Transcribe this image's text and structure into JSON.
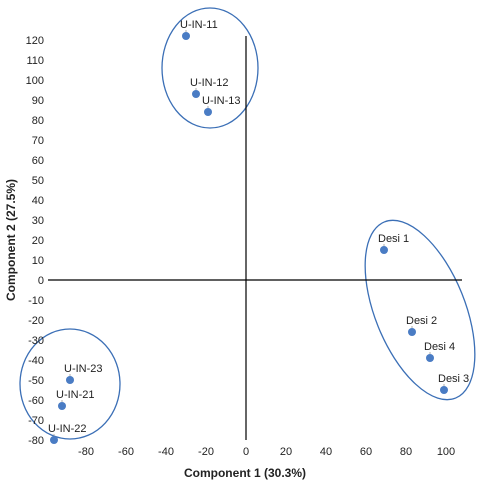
{
  "chart_data": {
    "type": "scatter",
    "xlabel": "Component 1 (30.3%)",
    "ylabel": "Component 2 (27.5%)",
    "xlim": [
      -100,
      110
    ],
    "ylim": [
      -80,
      125
    ],
    "x_ticks": [
      -80,
      -60,
      -40,
      -20,
      0,
      20,
      40,
      60,
      80,
      100
    ],
    "y_ticks": [
      120,
      110,
      100,
      90,
      80,
      70,
      60,
      50,
      40,
      30,
      20,
      10,
      0,
      -10,
      -20,
      -30,
      -40,
      -50,
      -60,
      -70,
      -80
    ],
    "grid": false,
    "point_color": "#4a7cc4",
    "ellipse_color": "#3b6fb6",
    "points": [
      {
        "label": "U-IN-11",
        "x": -30,
        "y": 122
      },
      {
        "label": "U-IN-12",
        "x": -25,
        "y": 93
      },
      {
        "label": "U-IN-13",
        "x": -19,
        "y": 84
      },
      {
        "label": "Desi 1",
        "x": 69,
        "y": 15
      },
      {
        "label": "Desi 2",
        "x": 83,
        "y": -26
      },
      {
        "label": "Desi 4",
        "x": 92,
        "y": -39
      },
      {
        "label": "Desi 3",
        "x": 99,
        "y": -55
      },
      {
        "label": "U-IN-23",
        "x": -88,
        "y": -50
      },
      {
        "label": "U-IN-21",
        "x": -92,
        "y": -63
      },
      {
        "label": "U-IN-22",
        "x": -96,
        "y": -80
      }
    ]
  }
}
